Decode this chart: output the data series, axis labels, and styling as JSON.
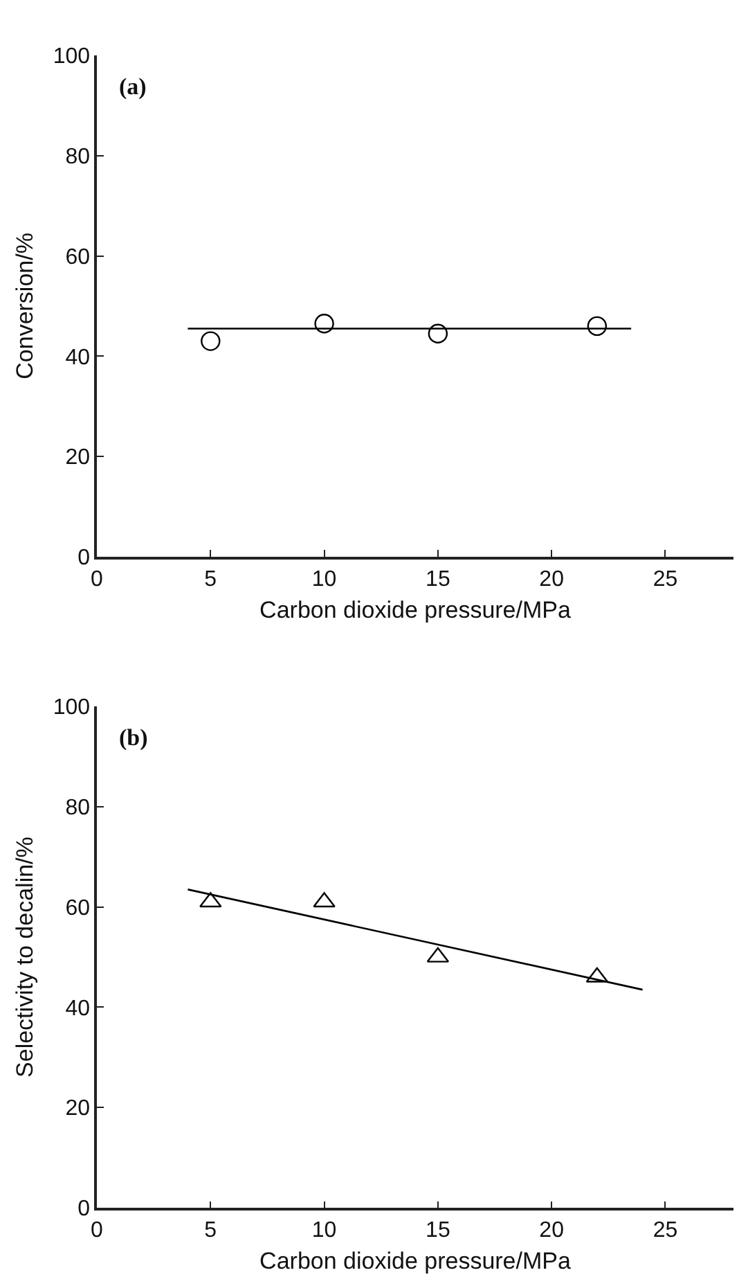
{
  "chart_data": [
    {
      "type": "scatter",
      "xlabel": "Carbon dioxide pressure/MPa",
      "ylabel": "Conversion/%",
      "annotations": [
        "(a)"
      ],
      "xlim": [
        0,
        28
      ],
      "xticks": [
        0,
        5,
        10,
        15,
        20,
        25
      ],
      "ylim": [
        0,
        100
      ],
      "yticks": [
        0,
        20,
        40,
        60,
        80,
        100
      ],
      "series": [
        {
          "marker": "circle",
          "color": "#000000",
          "x": [
            5,
            10,
            15,
            22
          ],
          "values": [
            43,
            46.5,
            44.5,
            46
          ]
        },
        {
          "type": "line",
          "marker": "none",
          "color": "#000000",
          "x": [
            4,
            23.5
          ],
          "values": [
            45.5,
            45.5
          ]
        }
      ]
    },
    {
      "type": "scatter",
      "xlabel": "Carbon dioxide pressure/MPa",
      "ylabel": "Selectivity to decalin/%",
      "annotations": [
        "(b)"
      ],
      "xlim": [
        0,
        28
      ],
      "xticks": [
        0,
        5,
        10,
        15,
        20,
        25
      ],
      "ylim": [
        0,
        100
      ],
      "yticks": [
        0,
        20,
        40,
        60,
        80,
        100
      ],
      "series": [
        {
          "marker": "triangle",
          "color": "#000000",
          "x": [
            5,
            10,
            15,
            22
          ],
          "values": [
            61,
            61,
            50,
            46
          ]
        },
        {
          "type": "line",
          "marker": "none",
          "color": "#000000",
          "x": [
            4,
            24
          ],
          "values": [
            63.5,
            43.5
          ]
        }
      ]
    }
  ]
}
